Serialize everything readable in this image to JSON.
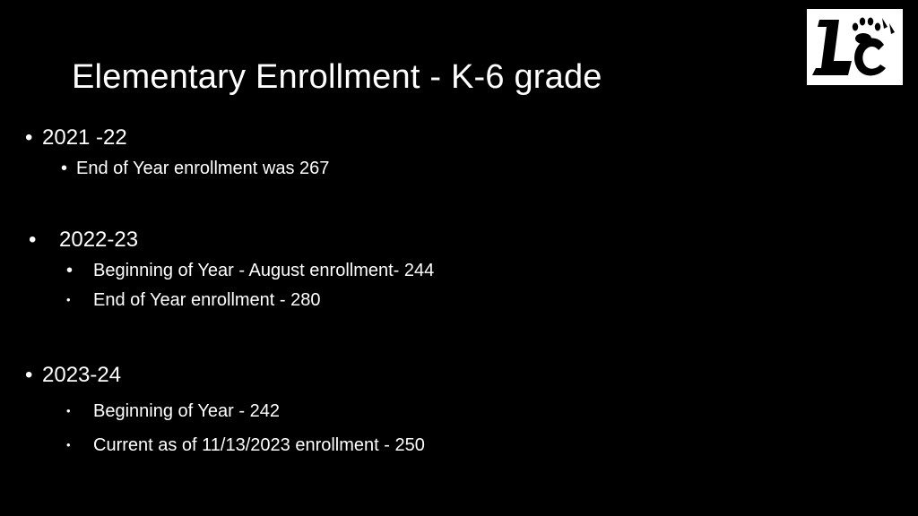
{
  "slide": {
    "title": "Elementary Enrollment - K-6 grade",
    "logo": {
      "icon": "school-logo-paw-icon",
      "text": "LC"
    },
    "sections": [
      {
        "year": "2021 -22",
        "items": [
          "End of Year enrollment was 267"
        ]
      },
      {
        "year": "2022-23",
        "items": [
          "Beginning of Year - August enrollment- 244",
          "End of Year enrollment  - 280"
        ]
      },
      {
        "year": "2023-24",
        "items": [
          "Beginning of Year - 242",
          "Current as of 11/13/2023 enrollment - 250"
        ]
      }
    ],
    "bullet": "•"
  },
  "colors": {
    "background": "#000000",
    "text": "#ffffff",
    "logo_background": "#ffffff",
    "logo_ink": "#000000"
  }
}
